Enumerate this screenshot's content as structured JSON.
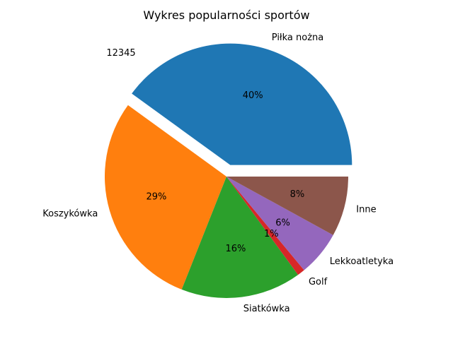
{
  "chart_data": {
    "type": "pie",
    "title": "Wykres popularności sportów",
    "annotation": "12345",
    "slices": [
      {
        "label": "Piłka nożna",
        "value": 40,
        "percent_label": "40%",
        "color": "#1f77b4",
        "exploded": true
      },
      {
        "label": "Koszykówka",
        "value": 29,
        "percent_label": "29%",
        "color": "#ff7f0e",
        "exploded": false
      },
      {
        "label": "Siatkówka",
        "value": 16,
        "percent_label": "16%",
        "color": "#2ca02c",
        "exploded": false
      },
      {
        "label": "Golf",
        "value": 1,
        "percent_label": "1%",
        "color": "#d62728",
        "exploded": false
      },
      {
        "label": "Lekkoatletyka",
        "value": 6,
        "percent_label": "6%",
        "color": "#9467bd",
        "exploded": false
      },
      {
        "label": "Inne",
        "value": 8,
        "percent_label": "8%",
        "color": "#8c564b",
        "exploded": false
      }
    ],
    "start_angle_deg": 0,
    "direction": "counterclockwise",
    "legend": "none"
  }
}
